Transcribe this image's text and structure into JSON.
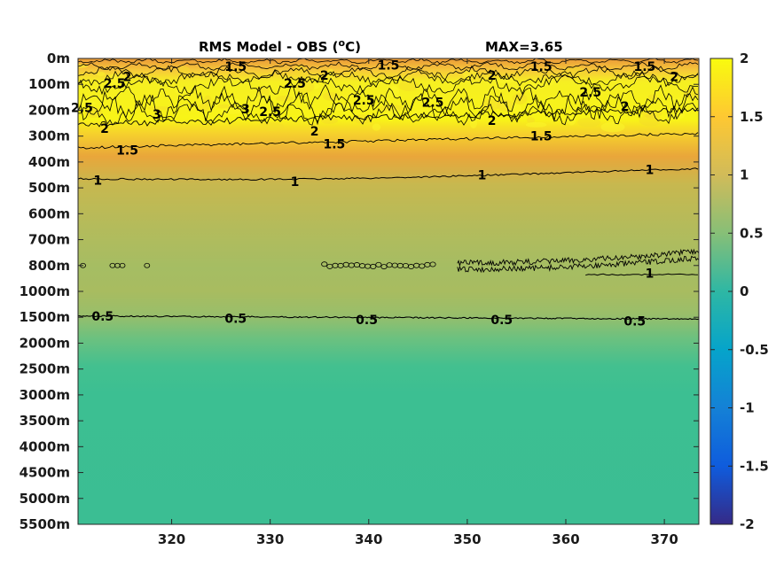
{
  "chart_data": {
    "type": "heatmap",
    "title": {
      "main_prefix": "RMS Model - OBS (",
      "superscript": "o",
      "main_suffix": "C)",
      "max_text": "MAX=3.65"
    },
    "xlabel": "",
    "ylabel": "",
    "xlim": [
      310.5,
      373.5
    ],
    "x_ticks": [
      320,
      330,
      340,
      350,
      360,
      370
    ],
    "y_tick_labels": [
      "0m",
      "100m",
      "200m",
      "300m",
      "400m",
      "500m",
      "600m",
      "700m",
      "800m",
      "1000m",
      "1500m",
      "2000m",
      "2500m",
      "3000m",
      "3500m",
      "4000m",
      "4500m",
      "5000m",
      "5500m"
    ],
    "colorbar": {
      "range": [
        -2,
        2
      ],
      "ticks": [
        "2",
        "1.5",
        "1",
        "0.5",
        "0",
        "-0.5",
        "-1",
        "-1.5",
        "-2"
      ],
      "colormap": "parula",
      "colors": [
        "#352a87",
        "#0f5cdd",
        "#1481d6",
        "#06a4ca",
        "#2eb7a4",
        "#87bf77",
        "#d1bb59",
        "#fec832",
        "#f9fb0e"
      ]
    },
    "depth_profile": {
      "depth_levels": [
        "0m",
        "100m",
        "200m",
        "300m",
        "400m",
        "500m",
        "600m",
        "700m",
        "800m",
        "1000m",
        "1500m",
        "2000m",
        "2500m",
        "3000m",
        "3500m",
        "4000m",
        "4500m",
        "5000m",
        "5500m"
      ],
      "rms_values": [
        1.3,
        1.95,
        2.0,
        1.55,
        1.12,
        0.95,
        0.85,
        0.82,
        0.85,
        0.7,
        0.5,
        0.45,
        0.45,
        0.45,
        0.45,
        0.45,
        0.45,
        0.45,
        0.45
      ]
    },
    "contour_levels": [
      0.5,
      1,
      1.5,
      2,
      2.5,
      3
    ],
    "contour_labels": [
      {
        "text": "2",
        "x": 315.5,
        "depth": 0.7
      },
      {
        "text": "2.5",
        "x": 314.2,
        "depth": 0.95
      },
      {
        "text": "1.5",
        "x": 326.5,
        "depth": 0.3
      },
      {
        "text": "2.5",
        "x": 332.5,
        "depth": 0.95
      },
      {
        "text": "2",
        "x": 335.5,
        "depth": 0.65
      },
      {
        "text": "1.5",
        "x": 342,
        "depth": 0.25
      },
      {
        "text": "1.5",
        "x": 357.5,
        "depth": 0.3
      },
      {
        "text": "1.5",
        "x": 368,
        "depth": 0.3
      },
      {
        "text": "2",
        "x": 352.5,
        "depth": 0.65
      },
      {
        "text": "2",
        "x": 371,
        "depth": 0.7
      },
      {
        "text": "2.5",
        "x": 362.5,
        "depth": 1.3
      },
      {
        "text": "2.5",
        "x": 310.9,
        "depth": 1.9
      },
      {
        "text": "2",
        "x": 313.2,
        "depth": 2.7
      },
      {
        "text": "3",
        "x": 318.5,
        "depth": 2.15
      },
      {
        "text": "3",
        "x": 327.5,
        "depth": 1.95
      },
      {
        "text": "2.5",
        "x": 330,
        "depth": 2.05
      },
      {
        "text": "2.5",
        "x": 339.5,
        "depth": 1.6
      },
      {
        "text": "2.5",
        "x": 346.5,
        "depth": 1.7
      },
      {
        "text": "2",
        "x": 334.5,
        "depth": 2.8
      },
      {
        "text": "2",
        "x": 352.5,
        "depth": 2.4
      },
      {
        "text": "2",
        "x": 366,
        "depth": 1.85
      },
      {
        "text": "1.5",
        "x": 315.5,
        "depth": 3.55
      },
      {
        "text": "1.5",
        "x": 336.5,
        "depth": 3.3
      },
      {
        "text": "1.5",
        "x": 357.5,
        "depth": 3.0
      },
      {
        "text": "1",
        "x": 312.5,
        "depth": 4.7
      },
      {
        "text": "1",
        "x": 332.5,
        "depth": 4.75
      },
      {
        "text": "1",
        "x": 351.5,
        "depth": 4.5
      },
      {
        "text": "1",
        "x": 368.5,
        "depth": 4.3
      },
      {
        "text": "1",
        "x": 368.5,
        "depth": 8.3
      },
      {
        "text": "0.5",
        "x": 313,
        "depth": 9.95
      },
      {
        "text": "0.5",
        "x": 326.5,
        "depth": 10.05
      },
      {
        "text": "0.5",
        "x": 339.8,
        "depth": 10.1
      },
      {
        "text": "0.5",
        "x": 353.5,
        "depth": 10.1
      },
      {
        "text": "0.5",
        "x": 367,
        "depth": 10.15
      }
    ]
  }
}
